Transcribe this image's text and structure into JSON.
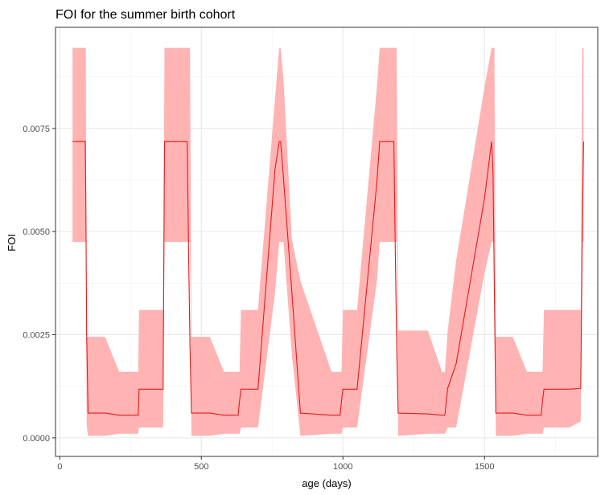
{
  "chart_data": {
    "type": "line",
    "title": "FOI for the summer birth cohort",
    "xlabel": "age (days)",
    "ylabel": "FOI",
    "xlim": [
      -15,
      1900
    ],
    "ylim": [
      -0.00045,
      0.00995
    ],
    "x_ticks": [
      0,
      500,
      1000,
      1500
    ],
    "x_tick_labels": [
      "0",
      "500",
      "1000",
      "1500"
    ],
    "y_ticks": [
      0.0,
      0.0025,
      0.005,
      0.0075
    ],
    "y_tick_labels": [
      "0.0000",
      "0.0025",
      "0.0050",
      "0.0075"
    ],
    "grid": true,
    "legend": "none",
    "colors": {
      "line": "#e31a1c",
      "ribbon": "#ffb3b3"
    },
    "series": [
      {
        "x": [
          45,
          90,
          92,
          95,
          100,
          160,
          210,
          270,
          277,
          280,
          310,
          365,
          370,
          375,
          450,
          455,
          460,
          465,
          530,
          580,
          630,
          635,
          640,
          700,
          760,
          775,
          780,
          790,
          820,
          850,
          960,
          990,
          995,
          1000,
          1050,
          1120,
          1130,
          1140,
          1180,
          1185,
          1190,
          1195,
          1300,
          1350,
          1360,
          1370,
          1400,
          1500,
          1525,
          1530,
          1535,
          1540,
          1600,
          1650,
          1700,
          1705,
          1710,
          1720,
          1800,
          1840,
          1845,
          1850
        ],
        "y": [
          0.00718,
          0.00718,
          0.0058,
          0.0025,
          0.0006,
          0.0006,
          0.00055,
          0.00055,
          0.00055,
          0.00118,
          0.00118,
          0.00118,
          0.00718,
          0.00718,
          0.00718,
          0.0045,
          0.0022,
          0.0006,
          0.0006,
          0.00055,
          0.00055,
          0.0009,
          0.00118,
          0.00118,
          0.0065,
          0.00718,
          0.00718,
          0.0063,
          0.0035,
          0.0006,
          0.00055,
          0.00055,
          0.0009,
          0.00118,
          0.00118,
          0.0062,
          0.00718,
          0.00718,
          0.00718,
          0.0045,
          0.0022,
          0.0006,
          0.00058,
          0.00055,
          0.00055,
          0.0012,
          0.0018,
          0.0058,
          0.00718,
          0.0065,
          0.0035,
          0.0006,
          0.0006,
          0.00055,
          0.00055,
          0.0009,
          0.00118,
          0.00118,
          0.00118,
          0.0012,
          0.0048,
          0.00718
        ],
        "lower": [
          0.00475,
          0.00475,
          0.00475,
          0.0003,
          5e-05,
          5e-05,
          0.0001,
          0.0001,
          0.0001,
          0.00025,
          0.00025,
          0.00025,
          0.00475,
          0.00475,
          0.00475,
          0.00475,
          0.00475,
          5e-05,
          5e-05,
          0.0001,
          0.0001,
          0.0001,
          0.00025,
          0.00025,
          0.0035,
          0.00475,
          0.00475,
          0.00475,
          0.002,
          5e-05,
          0.0001,
          0.0001,
          0.0001,
          0.00025,
          0.00025,
          0.0038,
          0.00475,
          0.00475,
          0.00475,
          0.00475,
          0.00475,
          5e-05,
          0.0001,
          0.0001,
          0.0001,
          0.00025,
          0.00025,
          0.004,
          0.00475,
          0.00475,
          0.00475,
          5e-05,
          5e-05,
          0.0001,
          0.0001,
          0.0001,
          0.00025,
          0.00025,
          0.00025,
          0.0004,
          0.00475,
          0.00475
        ],
        "upper": [
          0.00945,
          0.00945,
          0.00945,
          0.00245,
          0.00245,
          0.00245,
          0.0016,
          0.0016,
          0.0016,
          0.0031,
          0.0031,
          0.0031,
          0.00945,
          0.00945,
          0.00945,
          0.00945,
          0.00945,
          0.00245,
          0.00245,
          0.0016,
          0.0016,
          0.0016,
          0.0031,
          0.0031,
          0.0082,
          0.00945,
          0.00945,
          0.0087,
          0.0048,
          0.0038,
          0.0016,
          0.0016,
          0.0016,
          0.0031,
          0.0031,
          0.0085,
          0.00945,
          0.00945,
          0.00945,
          0.00945,
          0.00945,
          0.0026,
          0.0026,
          0.0016,
          0.0016,
          0.0026,
          0.0043,
          0.0085,
          0.00945,
          0.00945,
          0.00945,
          0.00245,
          0.00245,
          0.0016,
          0.0016,
          0.0016,
          0.0031,
          0.0031,
          0.0031,
          0.0031,
          0.00945,
          0.00945
        ]
      }
    ]
  }
}
